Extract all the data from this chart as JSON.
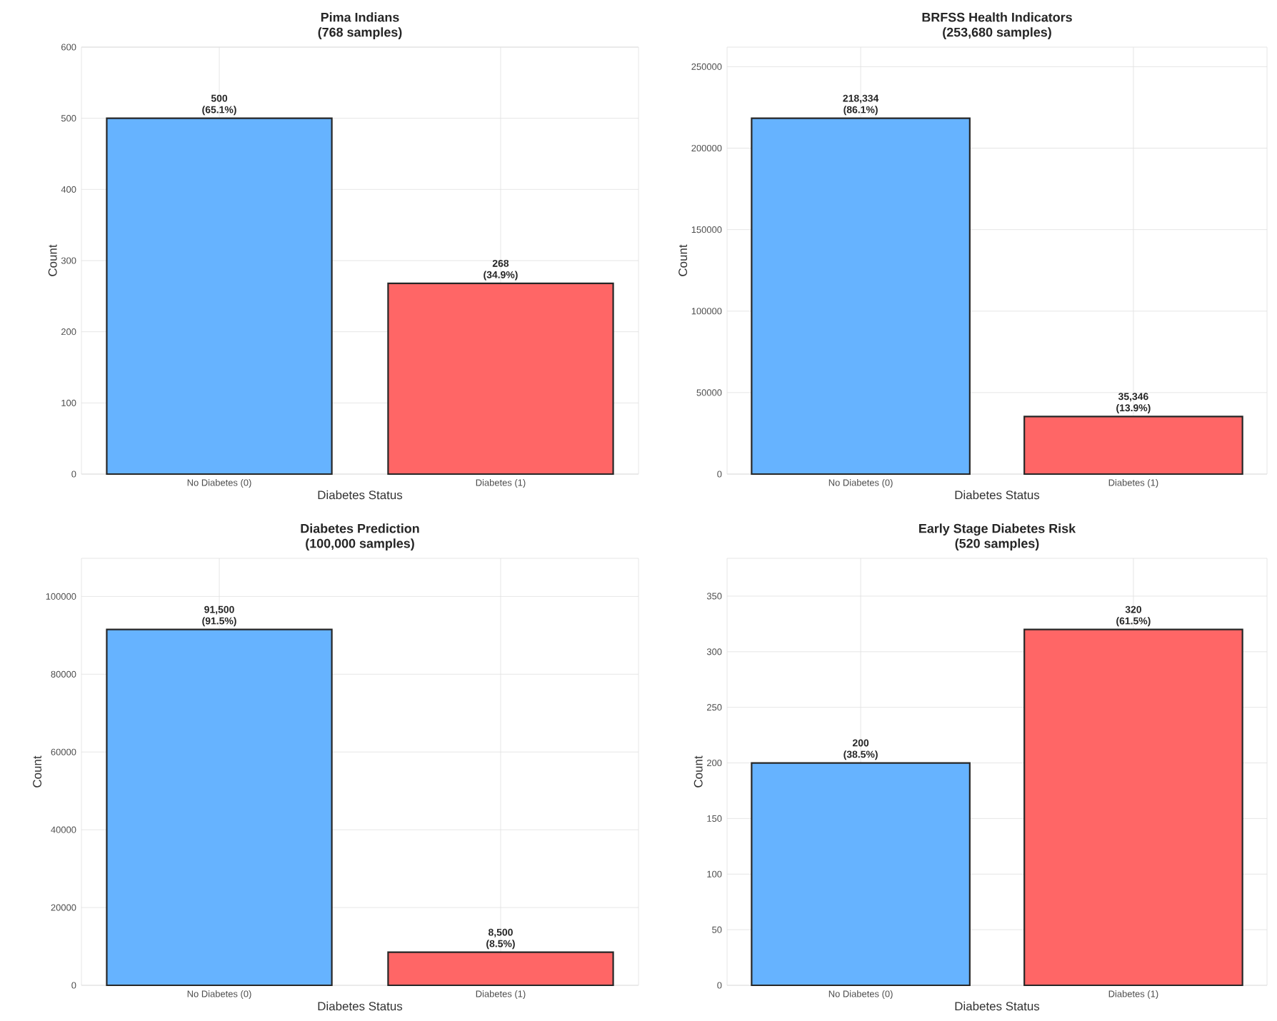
{
  "chart_data": [
    {
      "type": "bar",
      "title": "Pima Indians",
      "subtitle": "(768 samples)",
      "xlabel": "Diabetes Status",
      "ylabel": "Count",
      "categories": [
        "No Diabetes (0)",
        "Diabetes (1)"
      ],
      "values": [
        500,
        268
      ],
      "colors": [
        "#66b3ff",
        "#ff6666"
      ],
      "value_labels": [
        "500 (65.1%)",
        "268 (34.9%)"
      ],
      "ylim": [
        0,
        600
      ],
      "yticks": [
        0,
        100,
        200,
        300,
        400,
        500,
        600
      ],
      "grid": true
    },
    {
      "type": "bar",
      "title": "BRFSS Health Indicators",
      "subtitle": "(253,680 samples)",
      "xlabel": "Diabetes Status",
      "ylabel": "Count",
      "categories": [
        "No Diabetes (0)",
        "Diabetes (1)"
      ],
      "values": [
        218334,
        35346
      ],
      "colors": [
        "#66b3ff",
        "#ff6666"
      ],
      "value_labels": [
        "218,334 (86.1%)",
        "35,346 (13.9%)"
      ],
      "ylim": [
        0,
        262000
      ],
      "yticks": [
        0,
        50000,
        100000,
        150000,
        200000,
        250000
      ],
      "grid": true
    },
    {
      "type": "bar",
      "title": "Diabetes Prediction",
      "subtitle": "(100,000 samples)",
      "xlabel": "Diabetes Status",
      "ylabel": "Count",
      "categories": [
        "No Diabetes (0)",
        "Diabetes (1)"
      ],
      "values": [
        91500,
        8500
      ],
      "colors": [
        "#66b3ff",
        "#ff6666"
      ],
      "value_labels": [
        "91,500 (91.5%)",
        "8,500 (8.5%)"
      ],
      "ylim": [
        0,
        109800
      ],
      "yticks": [
        0,
        20000,
        40000,
        60000,
        80000,
        100000
      ],
      "grid": true
    },
    {
      "type": "bar",
      "title": "Early Stage Diabetes Risk",
      "subtitle": "(520 samples)",
      "xlabel": "Diabetes Status",
      "ylabel": "Count",
      "categories": [
        "No Diabetes (0)",
        "Diabetes (1)"
      ],
      "values": [
        200,
        320
      ],
      "colors": [
        "#66b3ff",
        "#ff6666"
      ],
      "value_labels": [
        "200 (38.5%)",
        "320 (61.5%)"
      ],
      "ylim": [
        0,
        384
      ],
      "yticks": [
        0,
        50,
        100,
        150,
        200,
        250,
        300,
        350
      ],
      "grid": true
    }
  ]
}
